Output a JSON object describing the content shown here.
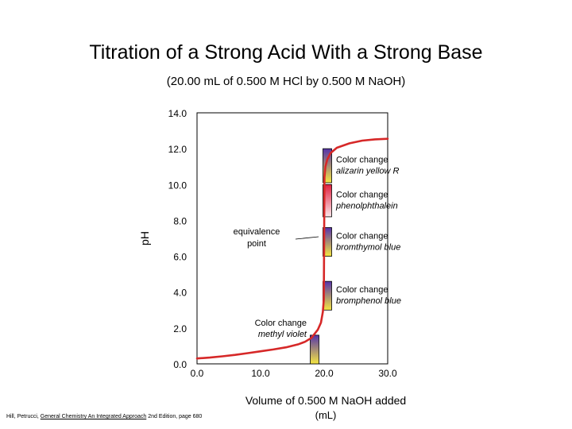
{
  "title": "Titration of a Strong Acid With a Strong Base",
  "subtitle": "(20.00 mL of 0.500 M HCl by 0.500 M NaOH)",
  "ylabel": "pH",
  "xlabel_line1": "Volume of 0.500 M NaOH added",
  "xlabel_line2": "(mL)",
  "citation": {
    "authors": "Hill, Petrucci, ",
    "book": "General Chemistry An Integrated Approach",
    "rest": " 2nd Edition, page 680"
  },
  "chart_data": {
    "type": "line",
    "xlim": [
      0,
      30
    ],
    "ylim": [
      0,
      14
    ],
    "x_ticks": [
      "0.0",
      "10.0",
      "20.0",
      "30.0"
    ],
    "x_tick_values": [
      0,
      10,
      20,
      30
    ],
    "y_ticks": [
      "0.0",
      "2.0",
      "4.0",
      "6.0",
      "8.0",
      "10.0",
      "12.0",
      "14.0"
    ],
    "y_tick_values": [
      0,
      2,
      4,
      6,
      8,
      10,
      12,
      14
    ],
    "grid": false,
    "series": [
      {
        "color": "#d62828",
        "x": [
          0,
          2,
          4,
          6,
          8,
          10,
          12,
          14,
          16,
          17,
          18,
          19,
          19.5,
          19.8,
          19.95,
          20.0,
          20.05,
          20.2,
          20.5,
          21,
          22,
          24,
          26,
          28,
          30
        ],
        "y": [
          0.3,
          0.35,
          0.42,
          0.5,
          0.6,
          0.7,
          0.8,
          0.92,
          1.1,
          1.23,
          1.45,
          1.9,
          2.3,
          2.9,
          3.6,
          7.0,
          10.4,
          11.0,
          11.4,
          11.75,
          12.05,
          12.3,
          12.45,
          12.52,
          12.55
        ]
      }
    ],
    "indicator_bars": [
      {
        "label_line1": "Color change",
        "label_line2": "methyl violet",
        "x": 18.5,
        "pH_low": 0,
        "pH_high": 1.6,
        "color_low": "#f5e642",
        "color_high": "#5533aa"
      },
      {
        "label_line1": "Color change",
        "label_line2": "bromphenol blue",
        "x": 20.5,
        "pH_low": 3.0,
        "pH_high": 4.6,
        "color_low": "#f5e642",
        "color_high": "#5533aa"
      },
      {
        "label_line1": "Color change",
        "label_line2": "bromthymol blue",
        "x": 20.5,
        "pH_low": 6.0,
        "pH_high": 7.6,
        "color_low": "#f5e642",
        "color_high": "#5533aa"
      },
      {
        "label_line1": "Color change",
        "label_line2": "phenolphthalein",
        "x": 20.5,
        "pH_low": 8.2,
        "pH_high": 10.0,
        "color_low": "#fbe7ea",
        "color_high": "#e02040"
      },
      {
        "label_line1": "Color change",
        "label_line2": "alizarin yellow R",
        "x": 20.5,
        "pH_low": 10.1,
        "pH_high": 12.0,
        "color_low": "#f5e642",
        "color_high": "#5533aa"
      }
    ],
    "annotation": {
      "text_line1": "equivalence",
      "text_line2": "point",
      "x": 20,
      "y": 7
    }
  }
}
